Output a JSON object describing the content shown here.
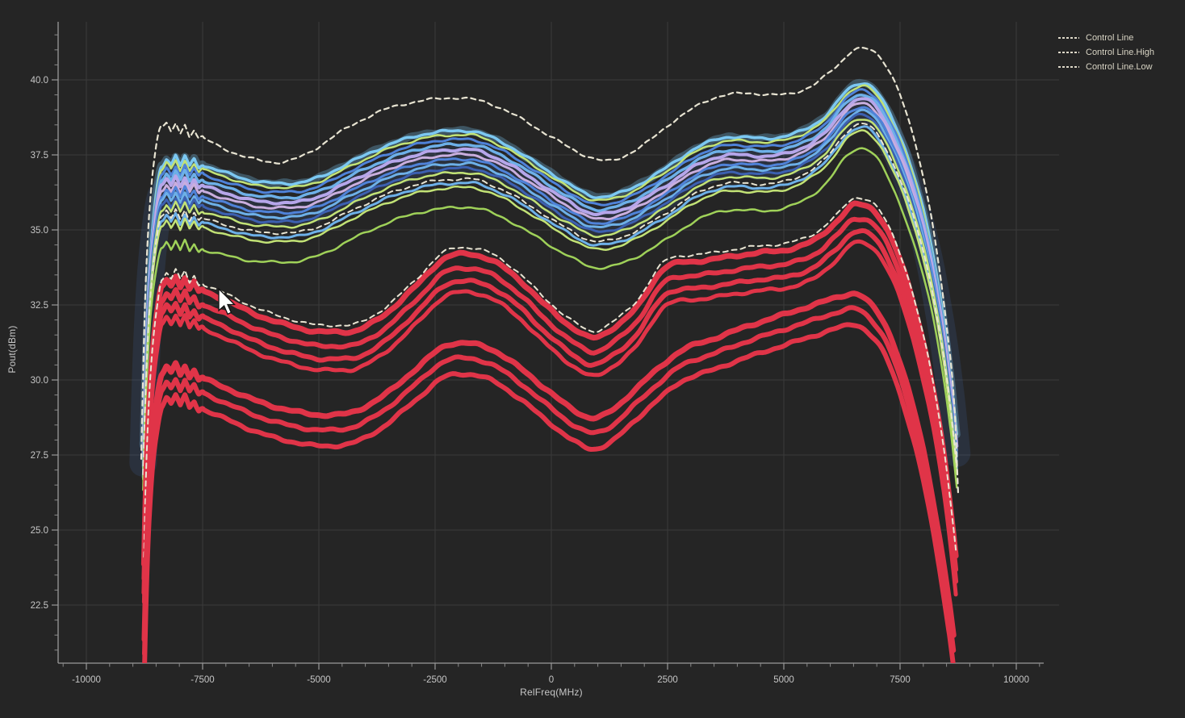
{
  "window": {
    "title": "Pout vs RelFreq sweep plot"
  },
  "palette": {
    "background": "#252525",
    "gridline": "#3a3a3a",
    "axis": "#9a9a9a",
    "tick": "#8a8a8a",
    "tick_text": "#c6c6c6",
    "cream": "#e8e4d2",
    "red": "#e03448",
    "sky_light": "#7cc8f2",
    "sky": "#6db0e8",
    "blue": "#4f82d8",
    "blue_dark": "#3c60b0",
    "lavender": "#b6a6ea",
    "lavender_pink": "#c9aede",
    "green": "#c2e276",
    "green_dim": "#9fd159",
    "cursor_fill": "#ffffff",
    "cursor_outline": "#111111"
  },
  "chart_data": {
    "type": "line",
    "title": "",
    "xlabel": "RelFreq(MHz)",
    "ylabel": "Pout(dBm)",
    "xlim": [
      -10608,
      10920
    ],
    "ylim": [
      20.6,
      41.9
    ],
    "grid": true,
    "x_ticks": {
      "values": [
        -10000,
        -7500,
        -5000,
        -2500,
        0,
        2500,
        5000,
        7500,
        10000
      ],
      "labels": [
        "-10000",
        "-7500",
        "-5000",
        "-2500",
        "0",
        "2500",
        "5000",
        "7500",
        "10000"
      ],
      "minor_step": 500
    },
    "y_ticks": {
      "values": [
        40.0,
        37.5,
        35.0,
        32.5,
        30.0,
        27.5,
        25.0,
        22.5
      ],
      "labels": [
        "40.0",
        "37.5",
        "35.0",
        "32.5",
        "30.0",
        "27.5",
        "25.0",
        "22.5"
      ],
      "minor_step": 0.5
    },
    "legend": {
      "position": "top-right",
      "items": [
        {
          "label": "Control Line"
        },
        {
          "label": "Control Line.High"
        },
        {
          "label": "Control Line.Low"
        }
      ]
    },
    "ripple": {
      "range_mhz": [
        -8380,
        -7480
      ],
      "amplitude_db": 0.18,
      "cycles": 4.5,
      "wave": "triangle"
    },
    "groups": {
      "control_high": {
        "points": [
          [
            -8820,
            27.4
          ],
          [
            -8790,
            29.5
          ],
          [
            -8740,
            32.5
          ],
          [
            -8650,
            35.5
          ],
          [
            -8520,
            37.6
          ],
          [
            -8380,
            38.45
          ],
          [
            -8150,
            38.4
          ],
          [
            -7900,
            38.35
          ],
          [
            -7600,
            38.15
          ],
          [
            -7100,
            37.75
          ],
          [
            -6500,
            37.4
          ],
          [
            -5900,
            37.25
          ],
          [
            -5300,
            37.5
          ],
          [
            -4500,
            38.3
          ],
          [
            -3600,
            39.0
          ],
          [
            -2800,
            39.3
          ],
          [
            -2100,
            39.4
          ],
          [
            -1400,
            39.25
          ],
          [
            -700,
            38.75
          ],
          [
            0,
            38.1
          ],
          [
            700,
            37.5
          ],
          [
            1200,
            37.3
          ],
          [
            1900,
            37.75
          ],
          [
            2700,
            38.7
          ],
          [
            3500,
            39.4
          ],
          [
            4200,
            39.55
          ],
          [
            4900,
            39.5
          ],
          [
            5600,
            39.8
          ],
          [
            6100,
            40.4
          ],
          [
            6600,
            41.05
          ],
          [
            7000,
            40.85
          ],
          [
            7400,
            39.9
          ],
          [
            7800,
            38.0
          ],
          [
            8200,
            35.2
          ],
          [
            8500,
            31.8
          ],
          [
            8680,
            28.8
          ],
          [
            8750,
            26.2
          ]
        ]
      },
      "bundle_top": {
        "points": [
          [
            -8780,
            27.8
          ],
          [
            -8750,
            29.5
          ],
          [
            -8700,
            31.8
          ],
          [
            -8620,
            34.2
          ],
          [
            -8500,
            36.2
          ],
          [
            -8380,
            37.15
          ],
          [
            -8150,
            37.3
          ],
          [
            -7900,
            37.3
          ],
          [
            -7600,
            37.2
          ],
          [
            -7000,
            36.9
          ],
          [
            -6300,
            36.6
          ],
          [
            -5600,
            36.55
          ],
          [
            -5000,
            36.75
          ],
          [
            -4200,
            37.35
          ],
          [
            -3300,
            37.95
          ],
          [
            -2500,
            38.25
          ],
          [
            -1800,
            38.3
          ],
          [
            -1100,
            37.95
          ],
          [
            -400,
            37.3
          ],
          [
            300,
            36.6
          ],
          [
            1000,
            36.1
          ],
          [
            1600,
            36.3
          ],
          [
            2400,
            37.0
          ],
          [
            3200,
            37.8
          ],
          [
            3900,
            38.1
          ],
          [
            4600,
            38.05
          ],
          [
            5300,
            38.25
          ],
          [
            5900,
            38.8
          ],
          [
            6400,
            39.7
          ],
          [
            6700,
            39.9
          ],
          [
            7000,
            39.6
          ],
          [
            7300,
            38.8
          ],
          [
            7700,
            37.3
          ],
          [
            8100,
            35.0
          ],
          [
            8400,
            32.4
          ],
          [
            8600,
            30.0
          ],
          [
            8720,
            28.2
          ]
        ]
      },
      "bundle_spread": {
        "points": [
          [
            -8780,
            1.1
          ],
          [
            -8400,
            2.0
          ],
          [
            -7900,
            2.1
          ],
          [
            -6000,
            1.95
          ],
          [
            -2400,
            1.9
          ],
          [
            0,
            1.8
          ],
          [
            1100,
            1.75
          ],
          [
            3900,
            1.8
          ],
          [
            5300,
            1.75
          ],
          [
            6600,
            1.6
          ],
          [
            7700,
            1.7
          ],
          [
            8720,
            1.3
          ]
        ]
      },
      "red_mid_top": {
        "points": [
          [
            -8760,
            24.0
          ],
          [
            -8730,
            26.0
          ],
          [
            -8680,
            28.4
          ],
          [
            -8600,
            30.6
          ],
          [
            -8480,
            32.4
          ],
          [
            -8370,
            33.3
          ],
          [
            -8150,
            33.45
          ],
          [
            -7900,
            33.4
          ],
          [
            -7600,
            33.2
          ],
          [
            -7000,
            32.8
          ],
          [
            -6300,
            32.3
          ],
          [
            -5600,
            31.95
          ],
          [
            -4900,
            31.75
          ],
          [
            -4400,
            31.75
          ],
          [
            -3700,
            32.2
          ],
          [
            -2900,
            33.3
          ],
          [
            -2300,
            34.2
          ],
          [
            -1900,
            34.35
          ],
          [
            -1300,
            34.15
          ],
          [
            -700,
            33.5
          ],
          [
            -100,
            32.6
          ],
          [
            500,
            31.85
          ],
          [
            900,
            31.55
          ],
          [
            1300,
            31.85
          ],
          [
            1800,
            32.5
          ],
          [
            2500,
            33.95
          ],
          [
            3100,
            34.1
          ],
          [
            3800,
            34.25
          ],
          [
            4500,
            34.4
          ],
          [
            5100,
            34.5
          ],
          [
            5700,
            34.85
          ],
          [
            6150,
            35.45
          ],
          [
            6550,
            36.0
          ],
          [
            6900,
            35.85
          ],
          [
            7300,
            34.9
          ],
          [
            7700,
            33.2
          ],
          [
            8100,
            30.7
          ],
          [
            8400,
            28.1
          ],
          [
            8600,
            25.7
          ],
          [
            8700,
            24.3
          ]
        ]
      },
      "red_low_top": {
        "points": [
          [
            -8750,
            21.5
          ],
          [
            -8720,
            23.5
          ],
          [
            -8670,
            25.8
          ],
          [
            -8590,
            28.0
          ],
          [
            -8470,
            29.6
          ],
          [
            -8360,
            30.35
          ],
          [
            -8150,
            30.5
          ],
          [
            -7900,
            30.45
          ],
          [
            -7600,
            30.25
          ],
          [
            -7000,
            29.85
          ],
          [
            -6300,
            29.4
          ],
          [
            -5600,
            29.1
          ],
          [
            -4900,
            28.95
          ],
          [
            -4400,
            29.0
          ],
          [
            -3700,
            29.5
          ],
          [
            -2900,
            30.5
          ],
          [
            -2300,
            31.25
          ],
          [
            -1900,
            31.35
          ],
          [
            -1300,
            31.15
          ],
          [
            -700,
            30.55
          ],
          [
            -100,
            29.8
          ],
          [
            500,
            29.1
          ],
          [
            900,
            28.85
          ],
          [
            1300,
            29.1
          ],
          [
            1800,
            29.8
          ],
          [
            2300,
            30.5
          ],
          [
            2800,
            31.1
          ],
          [
            3500,
            31.5
          ],
          [
            4200,
            31.9
          ],
          [
            5000,
            32.3
          ],
          [
            5700,
            32.65
          ],
          [
            6200,
            32.9
          ],
          [
            6500,
            33.0
          ],
          [
            6800,
            32.75
          ],
          [
            7200,
            31.9
          ],
          [
            7600,
            30.2
          ],
          [
            8000,
            27.8
          ],
          [
            8300,
            25.3
          ],
          [
            8550,
            22.8
          ],
          [
            8650,
            21.6
          ]
        ]
      }
    },
    "series": [
      {
        "name": "bundle-wash",
        "group": "bundle",
        "mode": "frac",
        "value": 0.5,
        "color": "blue",
        "width": 34,
        "opacity": 0.14,
        "dash": false
      },
      {
        "name": "bundle-edge-glow",
        "group": "bundle",
        "mode": "frac",
        "value": 0.0,
        "color": "sky_light",
        "width": 9,
        "opacity": 0.3,
        "dash": false
      },
      {
        "name": "bundle-line-1",
        "group": "bundle",
        "mode": "frac",
        "value": 0.0,
        "color": "sky_light",
        "width": 3.5,
        "opacity": 1,
        "dash": false
      },
      {
        "name": "bundle-line-2",
        "group": "bundle",
        "mode": "frac",
        "value": 0.07,
        "color": "green",
        "width": 2.5,
        "opacity": 1,
        "dash": false
      },
      {
        "name": "bundle-line-3",
        "group": "bundle",
        "mode": "frac",
        "value": 0.15,
        "color": "blue",
        "width": 3,
        "opacity": 1,
        "dash": false
      },
      {
        "name": "bundle-line-4",
        "group": "bundle",
        "mode": "frac",
        "value": 0.24,
        "color": "sky",
        "width": 3.5,
        "opacity": 1,
        "dash": false
      },
      {
        "name": "bundle-line-5",
        "group": "bundle",
        "mode": "frac",
        "value": 0.33,
        "color": "lavender",
        "width": 4,
        "opacity": 1,
        "dash": false
      },
      {
        "name": "bundle-line-6",
        "group": "bundle",
        "mode": "frac",
        "value": 0.42,
        "color": "lavender_pink",
        "width": 3,
        "opacity": 1,
        "dash": false
      },
      {
        "name": "bundle-line-7",
        "group": "bundle",
        "mode": "frac",
        "value": 0.5,
        "color": "blue",
        "width": 3,
        "opacity": 1,
        "dash": false
      },
      {
        "name": "bundle-line-8",
        "group": "bundle",
        "mode": "frac",
        "value": 0.58,
        "color": "sky",
        "width": 3,
        "opacity": 1,
        "dash": false
      },
      {
        "name": "bundle-line-9",
        "group": "bundle",
        "mode": "frac",
        "value": 0.66,
        "color": "blue_dark",
        "width": 3,
        "opacity": 1,
        "dash": false
      },
      {
        "name": "bundle-line-10",
        "group": "bundle",
        "mode": "frac",
        "value": 0.74,
        "color": "green",
        "width": 2.5,
        "opacity": 1,
        "dash": false
      },
      {
        "name": "bundle-line-11",
        "group": "bundle",
        "mode": "frac",
        "value": 0.92,
        "color": "sky",
        "width": 3,
        "opacity": 1,
        "dash": false
      },
      {
        "name": "bundle-line-12",
        "group": "bundle",
        "mode": "frac",
        "value": 1.0,
        "color": "green",
        "width": 2.5,
        "opacity": 1,
        "dash": false
      },
      {
        "name": "bundle-line-13",
        "group": "bundle",
        "mode": "frac",
        "value": 1.35,
        "color": "green_dim",
        "width": 2.5,
        "opacity": 1,
        "dash": false
      },
      {
        "name": "control-line",
        "group": "bundle",
        "mode": "frac",
        "value": 0.85,
        "color": "cream",
        "width": 2,
        "opacity": 1,
        "dash": true
      },
      {
        "name": "red-mid-band-1",
        "group": "red_mid_top",
        "mode": "offset",
        "value": -0.15,
        "color": "red",
        "width": 7,
        "opacity": 1,
        "dash": false
      },
      {
        "name": "red-mid-band-2",
        "group": "red_mid_top",
        "mode": "offset",
        "value": -0.62,
        "color": "red",
        "width": 6,
        "opacity": 1,
        "dash": false
      },
      {
        "name": "red-mid-band-3",
        "group": "red_mid_top",
        "mode": "offset",
        "value": -1.05,
        "color": "red",
        "width": 6,
        "opacity": 1,
        "dash": false
      },
      {
        "name": "red-mid-band-4",
        "group": "red_mid_top",
        "mode": "offset",
        "value": -1.42,
        "color": "red",
        "width": 5,
        "opacity": 1,
        "dash": false
      },
      {
        "name": "control-line-low",
        "group": "red_mid_top",
        "mode": "offset",
        "value": 0.07,
        "color": "cream",
        "width": 2,
        "opacity": 1,
        "dash": true
      },
      {
        "name": "red-low-band-1",
        "group": "red_low_top",
        "mode": "offset",
        "value": -0.12,
        "color": "red",
        "width": 7,
        "opacity": 1,
        "dash": false
      },
      {
        "name": "red-low-band-2",
        "group": "red_low_top",
        "mode": "offset",
        "value": -0.62,
        "color": "red",
        "width": 6,
        "opacity": 1,
        "dash": false
      },
      {
        "name": "red-low-band-3",
        "group": "red_low_top",
        "mode": "offset",
        "value": -1.15,
        "color": "red",
        "width": 6,
        "opacity": 1,
        "dash": false
      },
      {
        "name": "control-line-high",
        "group": "control_high",
        "mode": "offset",
        "value": 0.0,
        "color": "cream",
        "width": 2.2,
        "opacity": 1,
        "dash": true
      }
    ],
    "cursor": {
      "x": 271,
      "y": 358
    }
  }
}
